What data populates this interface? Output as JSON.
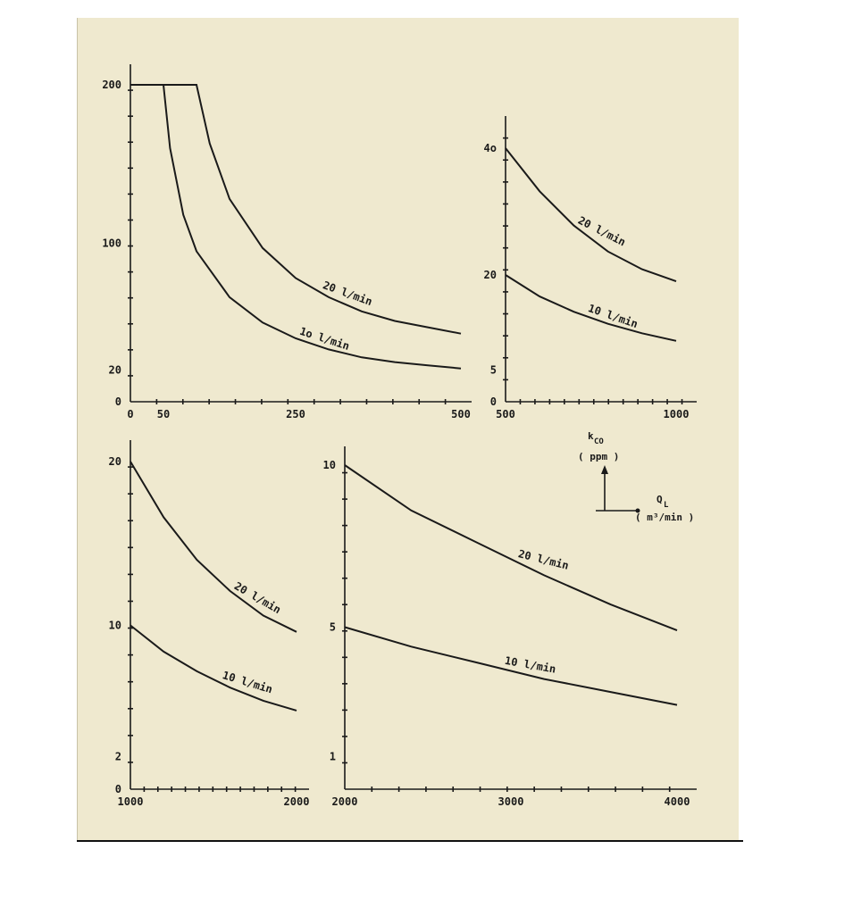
{
  "legend": {
    "y_symbol": "k",
    "y_sub": "CO",
    "y_unit": "( ppm )",
    "x_symbol": "Q",
    "x_sub": "L",
    "x_unit": "( m³/min )"
  },
  "chart_data": [
    {
      "type": "line",
      "xlim": [
        0,
        500
      ],
      "ylim": [
        0,
        200
      ],
      "x_ticks": [
        "0",
        "50",
        "250",
        "500"
      ],
      "y_ticks": [
        "0",
        "20",
        "100",
        "200"
      ],
      "series": [
        {
          "name": "20 l/min",
          "x": [
            0,
            100,
            120,
            150,
            200,
            250,
            300,
            350,
            400,
            450,
            500
          ],
          "y": [
            200,
            200,
            163,
            128,
            97,
            78,
            66,
            57,
            51,
            47,
            43
          ]
        },
        {
          "name": "1o l/min",
          "x": [
            0,
            50,
            60,
            80,
            100,
            150,
            200,
            250,
            300,
            350,
            400,
            450,
            500
          ],
          "y": [
            200,
            200,
            160,
            118,
            95,
            66,
            50,
            40,
            33,
            28,
            25,
            23,
            21
          ]
        }
      ]
    },
    {
      "type": "line",
      "xlim": [
        500,
        1000
      ],
      "ylim": [
        0,
        40
      ],
      "x_ticks": [
        "500",
        "1000"
      ],
      "y_ticks": [
        "0",
        "5",
        "20",
        "4o"
      ],
      "series": [
        {
          "name": "20 l/min",
          "x": [
            500,
            600,
            700,
            800,
            900,
            1000
          ],
          "y": [
            40,
            33.2,
            27.8,
            23.7,
            20.9,
            19
          ]
        },
        {
          "name": "10 l/min",
          "x": [
            500,
            600,
            700,
            800,
            900,
            1000
          ],
          "y": [
            20,
            16.6,
            14.2,
            12.3,
            10.8,
            9.6
          ]
        }
      ]
    },
    {
      "type": "line",
      "xlim": [
        1000,
        2000
      ],
      "ylim": [
        0,
        20
      ],
      "x_ticks": [
        "1000",
        "2000"
      ],
      "y_ticks": [
        "0",
        "2",
        "10",
        "20"
      ],
      "series": [
        {
          "name": "20 l/min",
          "x": [
            1000,
            1200,
            1400,
            1600,
            1800,
            2000
          ],
          "y": [
            20,
            16.6,
            14.0,
            12.1,
            10.6,
            9.6
          ]
        },
        {
          "name": "10 l/min",
          "x": [
            1000,
            1200,
            1400,
            1600,
            1800,
            2000
          ],
          "y": [
            10,
            8.4,
            7.2,
            6.2,
            5.4,
            4.8
          ]
        }
      ]
    },
    {
      "type": "line",
      "xlim": [
        2000,
        4000
      ],
      "ylim": [
        0,
        10
      ],
      "x_ticks": [
        "2000",
        "3000",
        "4000"
      ],
      "y_ticks": [
        "1",
        "5",
        "10"
      ],
      "series": [
        {
          "name": "20 l/min",
          "x": [
            2000,
            2400,
            2800,
            3200,
            3600,
            4000
          ],
          "y": [
            10,
            8.6,
            7.6,
            6.6,
            5.7,
            4.9
          ]
        },
        {
          "name": "10 l/min",
          "x": [
            2000,
            2400,
            2800,
            3200,
            3600,
            4000
          ],
          "y": [
            5,
            4.4,
            3.9,
            3.4,
            3.0,
            2.6
          ]
        }
      ]
    }
  ]
}
